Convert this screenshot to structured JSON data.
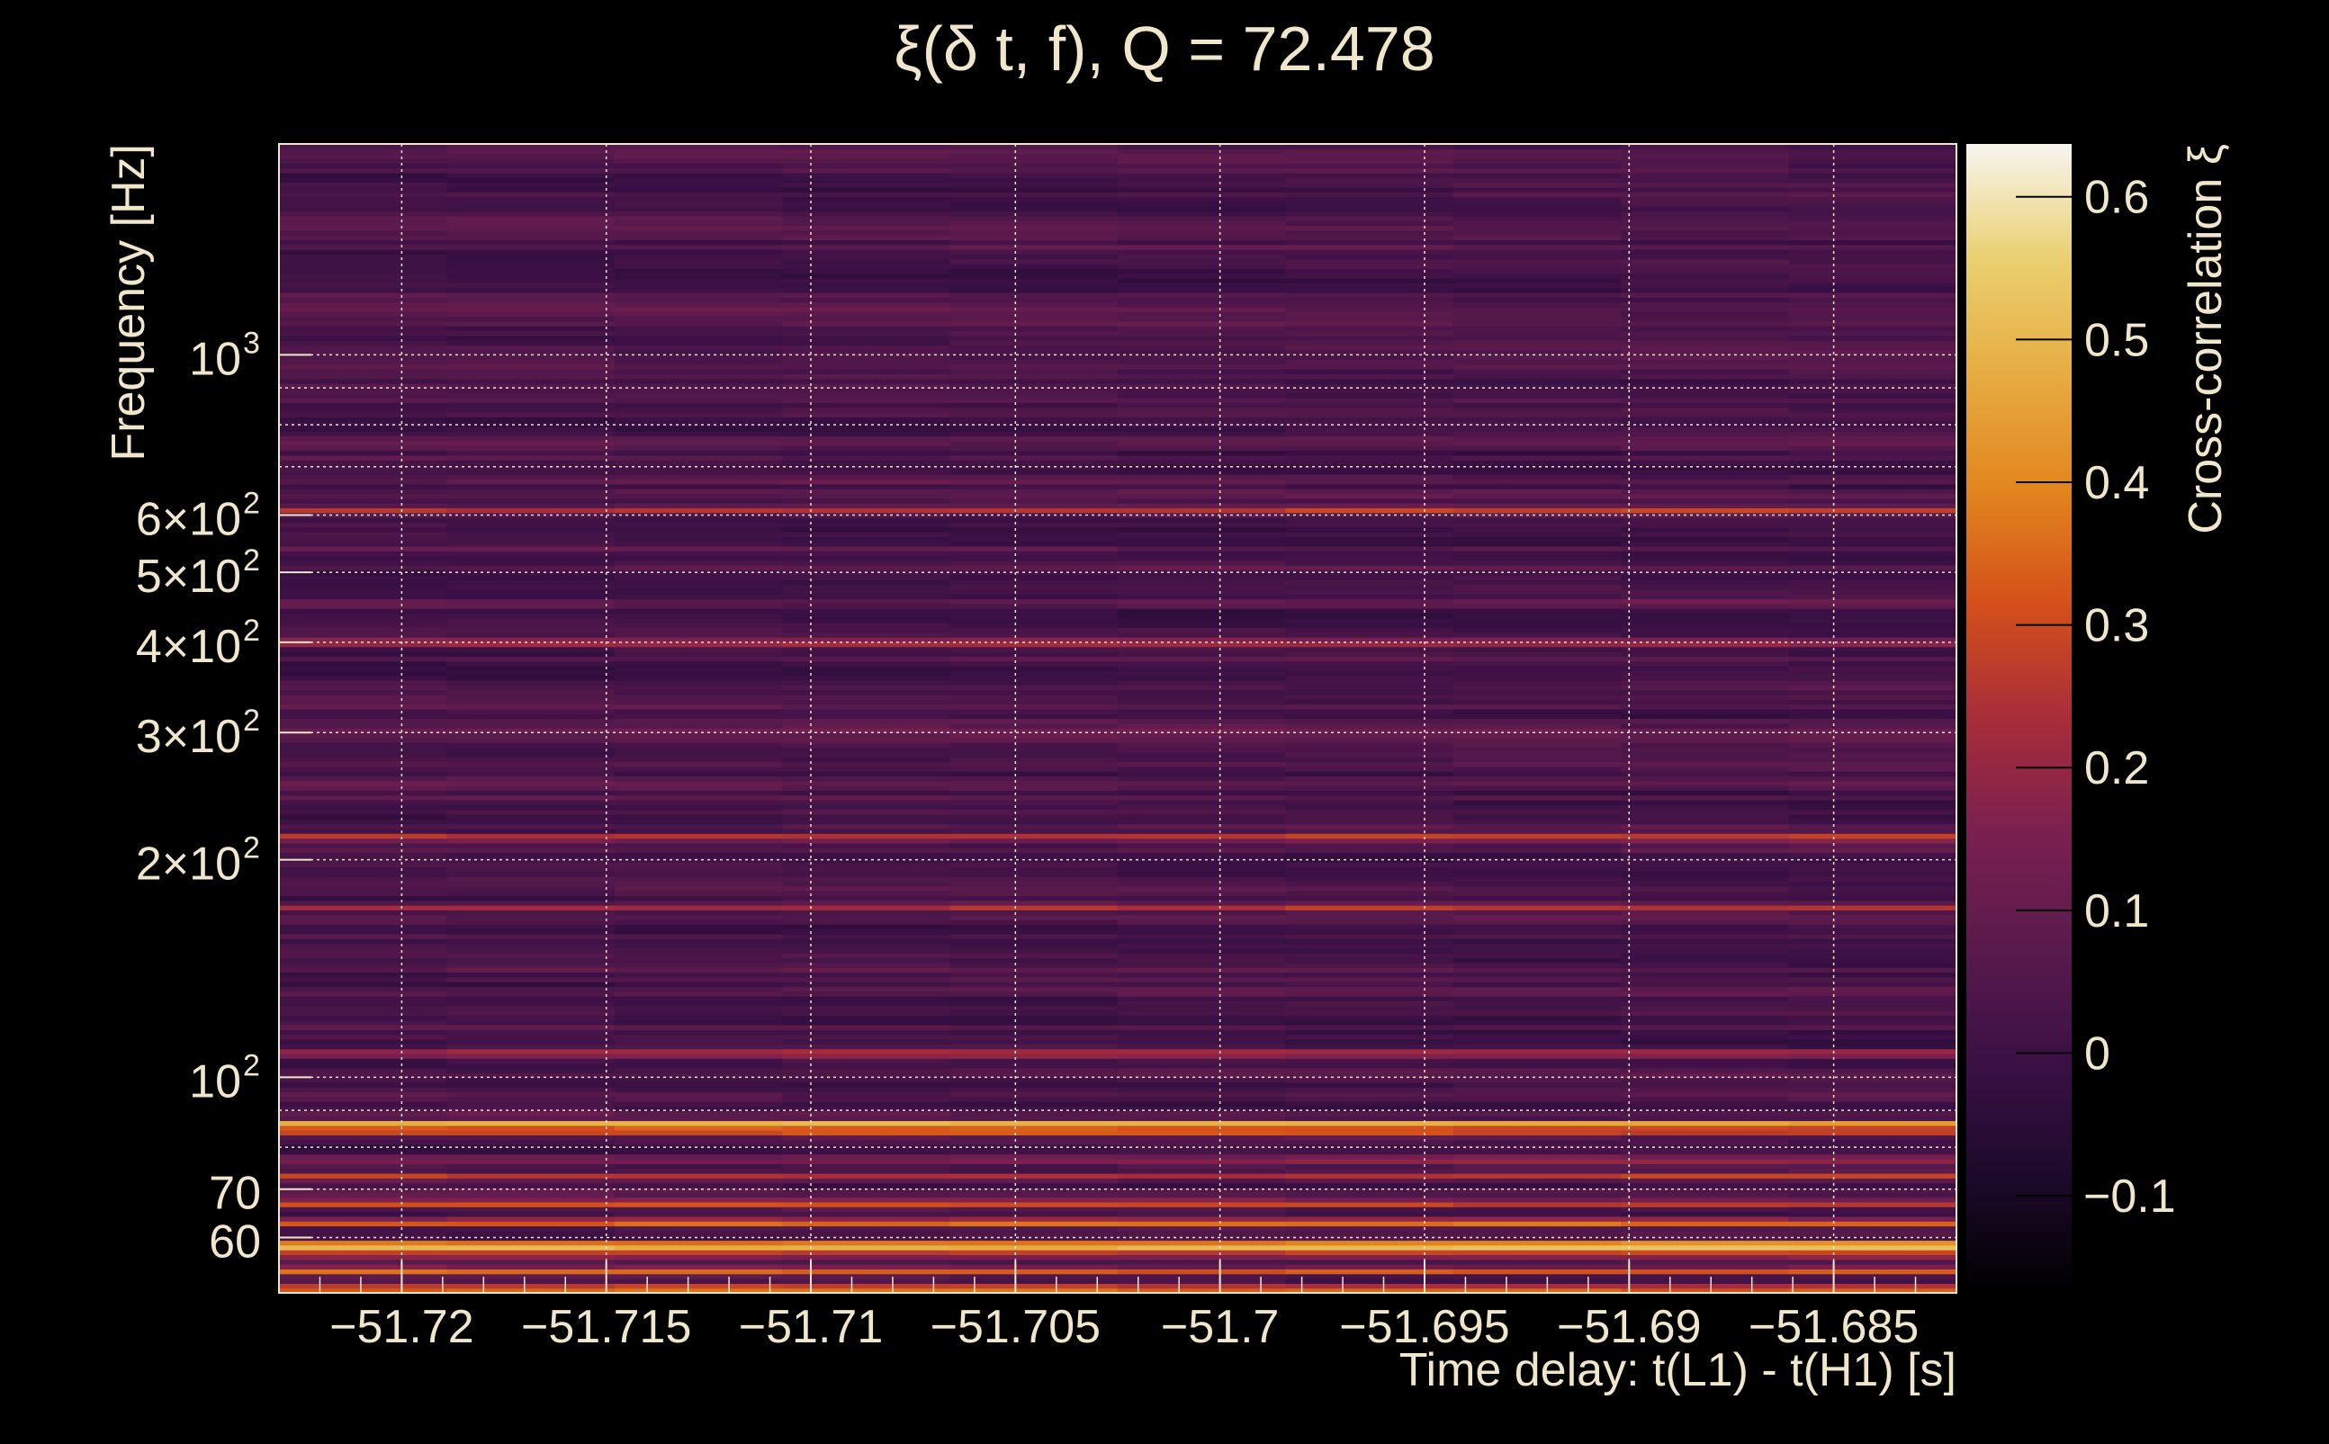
{
  "chart_data": {
    "type": "heatmap",
    "title": "ξ(δ t, f), Q = 72.478",
    "xlabel": "Time delay: t(L1) - t(H1) [s]",
    "ylabel": "Frequency [Hz]",
    "colorbar_label": "Cross-correlation ξ",
    "xlim": [
      -51.723,
      -51.682
    ],
    "ylim": [
      50.3,
      1958
    ],
    "yscale": "log",
    "clim": [
      -0.168,
      0.637
    ],
    "grid": true,
    "x_ticks": [
      {
        "value": -51.72,
        "label": "−51.72"
      },
      {
        "value": -51.715,
        "label": "−51.715"
      },
      {
        "value": -51.71,
        "label": "−51.71"
      },
      {
        "value": -51.705,
        "label": "−51.705"
      },
      {
        "value": -51.7,
        "label": "−51.7"
      },
      {
        "value": -51.695,
        "label": "−51.695"
      },
      {
        "value": -51.69,
        "label": "−51.69"
      },
      {
        "value": -51.685,
        "label": "−51.685"
      }
    ],
    "y_ticks": [
      {
        "value": 1000,
        "mant": "10",
        "exp": "3"
      },
      {
        "value": 600,
        "mant": "6×10",
        "exp": "2"
      },
      {
        "value": 500,
        "mant": "5×10",
        "exp": "2"
      },
      {
        "value": 400,
        "mant": "4×10",
        "exp": "2"
      },
      {
        "value": 300,
        "mant": "3×10",
        "exp": "2"
      },
      {
        "value": 200,
        "mant": "2×10",
        "exp": "2"
      },
      {
        "value": 100,
        "mant": "10",
        "exp": "2"
      },
      {
        "value": 70,
        "mant": "70",
        "exp": ""
      },
      {
        "value": 60,
        "mant": "60",
        "exp": ""
      }
    ],
    "y_minor_gridlines": [
      900,
      800,
      700,
      90,
      80
    ],
    "colorbar_ticks": [
      {
        "value": 0.6,
        "label": "0.6"
      },
      {
        "value": 0.5,
        "label": "0.5"
      },
      {
        "value": 0.4,
        "label": "0.4"
      },
      {
        "value": 0.3,
        "label": "0.3"
      },
      {
        "value": 0.2,
        "label": "0.2"
      },
      {
        "value": 0.1,
        "label": "0.1"
      },
      {
        "value": 0.0,
        "label": "0"
      },
      {
        "value": -0.1,
        "label": "−0.1"
      }
    ],
    "bands": [
      {
        "freq": 1900,
        "value": 0.09
      },
      {
        "freq": 1150,
        "value": 0.1
      },
      {
        "freq": 760,
        "value": 0.12
      },
      {
        "freq": 610,
        "value": 0.27
      },
      {
        "freq": 455,
        "value": 0.1
      },
      {
        "freq": 400,
        "value": 0.26
      },
      {
        "freq": 300,
        "value": 0.14
      },
      {
        "freq": 255,
        "value": 0.1
      },
      {
        "freq": 215,
        "value": 0.29
      },
      {
        "freq": 172,
        "value": 0.24
      },
      {
        "freq": 108,
        "value": 0.26
      },
      {
        "freq": 86,
        "value": 0.56
      },
      {
        "freq": 84,
        "value": 0.3
      },
      {
        "freq": 77,
        "value": 0.2
      },
      {
        "freq": 73,
        "value": 0.27
      },
      {
        "freq": 67,
        "value": 0.32
      },
      {
        "freq": 63,
        "value": 0.38
      },
      {
        "freq": 58.5,
        "value": 0.63
      },
      {
        "freq": 57,
        "value": 0.33
      },
      {
        "freq": 54,
        "value": 0.35
      },
      {
        "freq": 51,
        "value": 0.42
      }
    ],
    "background_value": 0.02
  },
  "colors": {
    "text": "#efe6cc",
    "background": "#000000",
    "colormap": [
      "#000000",
      "#1c0a2a",
      "#3a1045",
      "#5a1a4c",
      "#7a2050",
      "#a82d3a",
      "#d4501a",
      "#e2861e",
      "#e6ac42",
      "#ead070",
      "#f7f5f0"
    ]
  }
}
